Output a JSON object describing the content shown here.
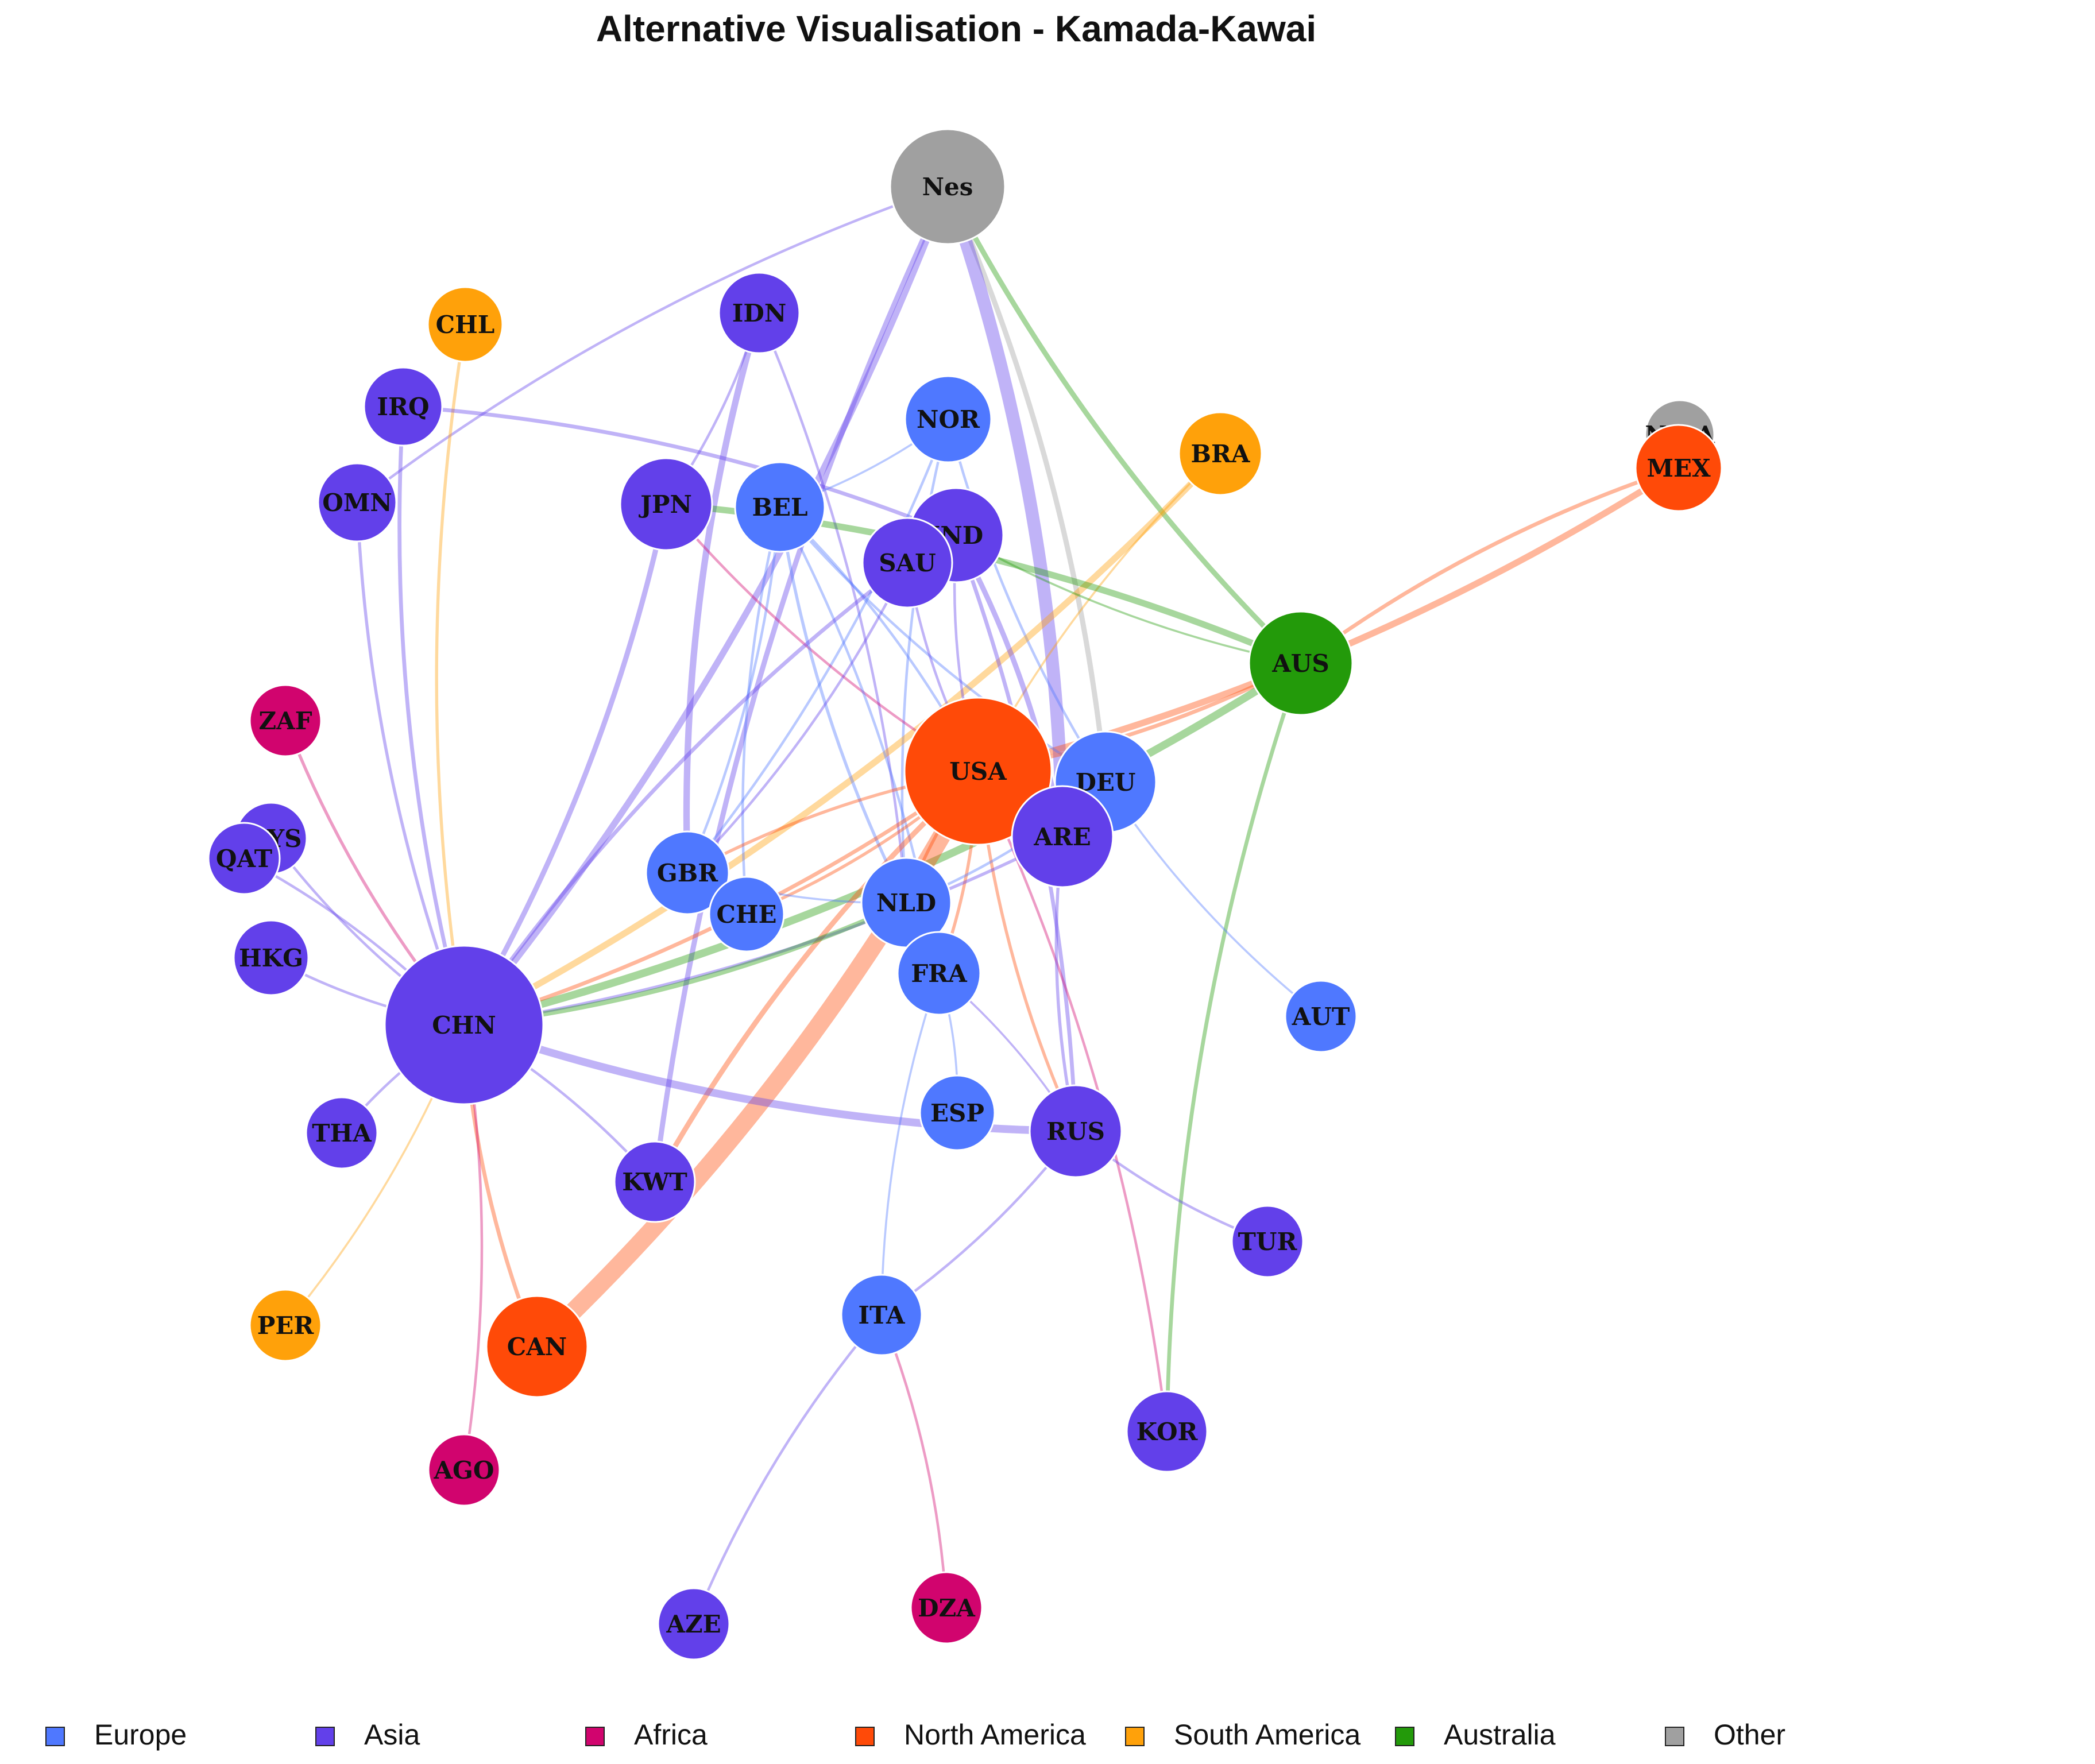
{
  "title": "Alternative Visualisation - Kamada-Kawai",
  "colors": {
    "Europe": "#4f78ff",
    "Asia": "#6240ea",
    "Africa": "#d1046e",
    "North America": "#ff4a08",
    "South America": "#ffa10a",
    "Australia": "#239a0a",
    "Other": "#a0a0a0"
  },
  "legend": [
    {
      "key": "Europe",
      "label": "Europe"
    },
    {
      "key": "Asia",
      "label": "Asia"
    },
    {
      "key": "Africa",
      "label": "Africa"
    },
    {
      "key": "North America",
      "label": "North America"
    },
    {
      "key": "South America",
      "label": "South America"
    },
    {
      "key": "Australia",
      "label": "Australia"
    },
    {
      "key": "Other",
      "label": "Other"
    }
  ],
  "nodes": [
    {
      "id": "Nes",
      "region": "Other",
      "weight": 10
    },
    {
      "id": "NesA",
      "region": "Other",
      "weight": 3
    },
    {
      "id": "CHL",
      "region": "South America",
      "weight": 3
    },
    {
      "id": "IDN",
      "region": "Asia",
      "weight": 3.5
    },
    {
      "id": "IRQ",
      "region": "Asia",
      "weight": 3.5
    },
    {
      "id": "NOR",
      "region": "Europe",
      "weight": 4
    },
    {
      "id": "BRA",
      "region": "South America",
      "weight": 4
    },
    {
      "id": "MEX",
      "region": "North America",
      "weight": 4
    },
    {
      "id": "OMN",
      "region": "Asia",
      "weight": 3.5
    },
    {
      "id": "JPN",
      "region": "Asia",
      "weight": 5
    },
    {
      "id": "BEL",
      "region": "Europe",
      "weight": 5
    },
    {
      "id": "IND",
      "region": "Asia",
      "weight": 5
    },
    {
      "id": "SAU",
      "region": "Asia",
      "weight": 5
    },
    {
      "id": "AUS",
      "region": "Australia",
      "weight": 7
    },
    {
      "id": "ZAF",
      "region": "Africa",
      "weight": 3
    },
    {
      "id": "USA",
      "region": "North America",
      "weight": 16
    },
    {
      "id": "DEU",
      "region": "Europe",
      "weight": 8
    },
    {
      "id": "ARE",
      "region": "Asia",
      "weight": 6.5
    },
    {
      "id": "MYS",
      "region": "Asia",
      "weight": 3
    },
    {
      "id": "QAT",
      "region": "Asia",
      "weight": 3
    },
    {
      "id": "GBR",
      "region": "Europe",
      "weight": 5
    },
    {
      "id": "CHE",
      "region": "Europe",
      "weight": 4
    },
    {
      "id": "NLD",
      "region": "Europe",
      "weight": 5.5
    },
    {
      "id": "HKG",
      "region": "Asia",
      "weight": 3.5
    },
    {
      "id": "FRA",
      "region": "Europe",
      "weight": 4.5
    },
    {
      "id": "AUT",
      "region": "Europe",
      "weight": 3
    },
    {
      "id": "CHN",
      "region": "Asia",
      "weight": 18
    },
    {
      "id": "ESP",
      "region": "Europe",
      "weight": 3.5
    },
    {
      "id": "RUS",
      "region": "Asia",
      "weight": 5.5
    },
    {
      "id": "THA",
      "region": "Asia",
      "weight": 3
    },
    {
      "id": "KWT",
      "region": "Asia",
      "weight": 4
    },
    {
      "id": "TUR",
      "region": "Asia",
      "weight": 3
    },
    {
      "id": "PER",
      "region": "South America",
      "weight": 3
    },
    {
      "id": "CAN",
      "region": "North America",
      "weight": 7
    },
    {
      "id": "ITA",
      "region": "Europe",
      "weight": 4
    },
    {
      "id": "KOR",
      "region": "Asia",
      "weight": 4
    },
    {
      "id": "AGO",
      "region": "Africa",
      "weight": 3
    },
    {
      "id": "AZE",
      "region": "Asia",
      "weight": 3
    },
    {
      "id": "DZA",
      "region": "Africa",
      "weight": 3
    }
  ],
  "edges": [
    [
      "Nes",
      "OMN",
      "Asia",
      1
    ],
    [
      "Nes",
      "CHN",
      "Asia",
      2.5
    ],
    [
      "Nes",
      "KWT",
      "Asia",
      2
    ],
    [
      "Nes",
      "DEU",
      "Other",
      2
    ],
    [
      "Nes",
      "AUS",
      "Australia",
      2
    ],
    [
      "Nes",
      "ARE",
      "Asia",
      5
    ],
    [
      "CHL",
      "CHN",
      "South America",
      1.2
    ],
    [
      "IDN",
      "JPN",
      "Asia",
      1
    ],
    [
      "IDN",
      "GBR",
      "Asia",
      2.5
    ],
    [
      "IDN",
      "NLD",
      "Asia",
      1
    ],
    [
      "IRQ",
      "CHN",
      "Asia",
      1.5
    ],
    [
      "IRQ",
      "IND",
      "Asia",
      1.5
    ],
    [
      "OMN",
      "CHN",
      "Asia",
      1.2
    ],
    [
      "NOR",
      "BEL",
      "Europe",
      0.8
    ],
    [
      "NOR",
      "DEU",
      "Europe",
      1
    ],
    [
      "NOR",
      "GBR",
      "Europe",
      1
    ],
    [
      "NOR",
      "NLD",
      "Europe",
      1
    ],
    [
      "BRA",
      "CHN",
      "South America",
      2.5
    ],
    [
      "BRA",
      "USA",
      "South America",
      0.8
    ],
    [
      "MEX",
      "USA",
      "North America",
      2.5
    ],
    [
      "MEX",
      "AUS",
      "North America",
      1.5
    ],
    [
      "JPN",
      "CHN",
      "Asia",
      2
    ],
    [
      "JPN",
      "USA",
      "Africa",
      1
    ],
    [
      "JPN",
      "AUS",
      "Australia",
      2.5
    ],
    [
      "BEL",
      "NLD",
      "Europe",
      1.2
    ],
    [
      "BEL",
      "FRA",
      "Europe",
      1
    ],
    [
      "BEL",
      "DEU",
      "Europe",
      1
    ],
    [
      "BEL",
      "USA",
      "Europe",
      1
    ],
    [
      "BEL",
      "CHE",
      "Europe",
      1
    ],
    [
      "BEL",
      "GBR",
      "Europe",
      1
    ],
    [
      "IND",
      "USA",
      "Asia",
      1
    ],
    [
      "IND",
      "RUS",
      "Asia",
      1.5
    ],
    [
      "IND",
      "AUS",
      "Australia",
      0.8
    ],
    [
      "IND",
      "ARE",
      "Asia",
      2
    ],
    [
      "SAU",
      "CHN",
      "Asia",
      1.5
    ],
    [
      "SAU",
      "GBR",
      "Asia",
      1
    ],
    [
      "SAU",
      "USA",
      "Asia",
      1
    ],
    [
      "AUS",
      "CHN",
      "Australia",
      3
    ],
    [
      "AUS",
      "KOR",
      "Australia",
      1.5
    ],
    [
      "AUS",
      "USA",
      "North America",
      1.5
    ],
    [
      "ZAF",
      "CHN",
      "Africa",
      1.2
    ],
    [
      "USA",
      "CAN",
      "North America",
      7
    ],
    [
      "USA",
      "KWT",
      "North America",
      2
    ],
    [
      "USA",
      "CHN",
      "North America",
      1.5
    ],
    [
      "USA",
      "GBR",
      "North America",
      1.2
    ],
    [
      "USA",
      "CHE",
      "North America",
      1.2
    ],
    [
      "USA",
      "NLD",
      "North America",
      1.2
    ],
    [
      "USA",
      "FRA",
      "North America",
      1.2
    ],
    [
      "USA",
      "RUS",
      "North America",
      1.2
    ],
    [
      "USA",
      "KOR",
      "Africa",
      1
    ],
    [
      "DEU",
      "AUT",
      "Europe",
      0.8
    ],
    [
      "DEU",
      "NLD",
      "Europe",
      1
    ],
    [
      "ARE",
      "RUS",
      "Asia",
      1.2
    ],
    [
      "ARE",
      "CHN",
      "Asia",
      1.2
    ],
    [
      "MYS",
      "CHN",
      "Asia",
      1
    ],
    [
      "QAT",
      "CHN",
      "Asia",
      1
    ],
    [
      "HKG",
      "CHN",
      "Asia",
      1
    ],
    [
      "THA",
      "CHN",
      "Asia",
      1
    ],
    [
      "GBR",
      "NLD",
      "Europe",
      0.8
    ],
    [
      "CHN",
      "KWT",
      "Asia",
      1
    ],
    [
      "CHN",
      "RUS",
      "Asia",
      3
    ],
    [
      "CHN",
      "PER",
      "South America",
      0.8
    ],
    [
      "CHN",
      "CAN",
      "North America",
      1.5
    ],
    [
      "CHN",
      "AGO",
      "Africa",
      1
    ],
    [
      "CHN",
      "NLD",
      "Australia",
      2
    ],
    [
      "FRA",
      "ESP",
      "Europe",
      0.8
    ],
    [
      "FRA",
      "ITA",
      "Europe",
      0.8
    ],
    [
      "FRA",
      "RUS",
      "Asia",
      0.8
    ],
    [
      "RUS",
      "TUR",
      "Asia",
      1
    ],
    [
      "RUS",
      "ITA",
      "Asia",
      1
    ],
    [
      "ITA",
      "AZE",
      "Asia",
      1
    ],
    [
      "ITA",
      "DZA",
      "Africa",
      1
    ]
  ]
}
